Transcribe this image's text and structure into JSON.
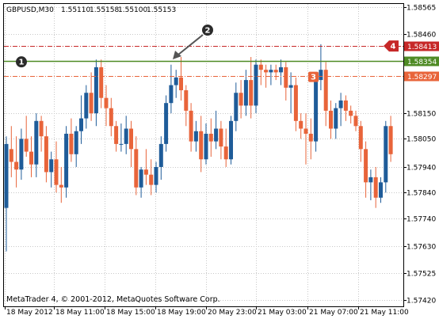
{
  "chart_data": {
    "type": "candlestick",
    "symbol_label": "GBPUSD,M30",
    "ohlc_readout": [
      "1.55110",
      "1.55158",
      "1.55100",
      "1.55153"
    ],
    "footer": "MetaTrader 4, © 2001-2012, MetaQuotes Software Corp.",
    "ylim": [
      1.5742,
      1.5857
    ],
    "y_ticks": [
      "1.58565",
      "1.58460",
      "1.58150",
      "1.58050",
      "1.57940",
      "1.57840",
      "1.57740",
      "1.57630",
      "1.57525",
      "1.57420"
    ],
    "x_ticks": [
      "18 May 2012",
      "18 May 11:00",
      "18 May 15:00",
      "18 May 19:00",
      "20 May 23:00",
      "21 May 03:00",
      "21 May 07:00",
      "21 May 11:00"
    ],
    "grid": true,
    "bull_color": "#1f5c99",
    "bear_color": "#e8643a",
    "levels": [
      {
        "price": 1.58413,
        "label": "1.58413",
        "style": "dash-dot",
        "color": "#c62828"
      },
      {
        "price": 1.58354,
        "label": "1.58354",
        "style": "solid",
        "color": "#4e8a24"
      },
      {
        "price": 1.58297,
        "label": "1.58297",
        "style": "dash-dot",
        "color": "#e8643a"
      }
    ],
    "markers": [
      "1",
      "2",
      "3",
      "4"
    ],
    "candles": [
      {
        "o": 1.5778,
        "h": 1.5806,
        "l": 1.5761,
        "c": 1.5803
      },
      {
        "o": 1.5801,
        "h": 1.581,
        "l": 1.579,
        "c": 1.5796
      },
      {
        "o": 1.5796,
        "h": 1.5806,
        "l": 1.5786,
        "c": 1.5793
      },
      {
        "o": 1.5793,
        "h": 1.5809,
        "l": 1.5789,
        "c": 1.5805
      },
      {
        "o": 1.5805,
        "h": 1.5814,
        "l": 1.5798,
        "c": 1.58
      },
      {
        "o": 1.58,
        "h": 1.5806,
        "l": 1.579,
        "c": 1.5795
      },
      {
        "o": 1.5795,
        "h": 1.5815,
        "l": 1.579,
        "c": 1.5812
      },
      {
        "o": 1.5812,
        "h": 1.5814,
        "l": 1.58,
        "c": 1.5806
      },
      {
        "o": 1.5806,
        "h": 1.581,
        "l": 1.5788,
        "c": 1.5792
      },
      {
        "o": 1.5792,
        "h": 1.58,
        "l": 1.5786,
        "c": 1.5797
      },
      {
        "o": 1.5797,
        "h": 1.5804,
        "l": 1.5784,
        "c": 1.5787
      },
      {
        "o": 1.5787,
        "h": 1.5794,
        "l": 1.578,
        "c": 1.5786
      },
      {
        "o": 1.5786,
        "h": 1.581,
        "l": 1.5782,
        "c": 1.5807
      },
      {
        "o": 1.5807,
        "h": 1.5813,
        "l": 1.5796,
        "c": 1.5799
      },
      {
        "o": 1.5799,
        "h": 1.581,
        "l": 1.5794,
        "c": 1.5808
      },
      {
        "o": 1.5808,
        "h": 1.5822,
        "l": 1.5803,
        "c": 1.5813
      },
      {
        "o": 1.5813,
        "h": 1.5826,
        "l": 1.5809,
        "c": 1.5823
      },
      {
        "o": 1.5823,
        "h": 1.5831,
        "l": 1.5812,
        "c": 1.5815
      },
      {
        "o": 1.5815,
        "h": 1.5836,
        "l": 1.581,
        "c": 1.5833
      },
      {
        "o": 1.5833,
        "h": 1.5836,
        "l": 1.5817,
        "c": 1.5821
      },
      {
        "o": 1.5821,
        "h": 1.5826,
        "l": 1.581,
        "c": 1.5817
      },
      {
        "o": 1.5817,
        "h": 1.5821,
        "l": 1.5806,
        "c": 1.581
      },
      {
        "o": 1.581,
        "h": 1.5812,
        "l": 1.58,
        "c": 1.5803
      },
      {
        "o": 1.5803,
        "h": 1.5811,
        "l": 1.58,
        "c": 1.5803
      },
      {
        "o": 1.5803,
        "h": 1.5814,
        "l": 1.5799,
        "c": 1.5809
      },
      {
        "o": 1.5809,
        "h": 1.5812,
        "l": 1.5794,
        "c": 1.5801
      },
      {
        "o": 1.5801,
        "h": 1.5806,
        "l": 1.5783,
        "c": 1.5786
      },
      {
        "o": 1.5786,
        "h": 1.5794,
        "l": 1.5782,
        "c": 1.5793
      },
      {
        "o": 1.5793,
        "h": 1.5801,
        "l": 1.5787,
        "c": 1.5791
      },
      {
        "o": 1.5791,
        "h": 1.5797,
        "l": 1.5783,
        "c": 1.5787
      },
      {
        "o": 1.5787,
        "h": 1.5796,
        "l": 1.5784,
        "c": 1.5794
      },
      {
        "o": 1.5794,
        "h": 1.5806,
        "l": 1.5789,
        "c": 1.5803
      },
      {
        "o": 1.5803,
        "h": 1.5822,
        "l": 1.58,
        "c": 1.5819
      },
      {
        "o": 1.5819,
        "h": 1.5834,
        "l": 1.5815,
        "c": 1.5826
      },
      {
        "o": 1.5826,
        "h": 1.5832,
        "l": 1.5821,
        "c": 1.5829
      },
      {
        "o": 1.5829,
        "h": 1.5837,
        "l": 1.582,
        "c": 1.5824
      },
      {
        "o": 1.5824,
        "h": 1.5826,
        "l": 1.581,
        "c": 1.5816
      },
      {
        "o": 1.5816,
        "h": 1.5819,
        "l": 1.58,
        "c": 1.5804
      },
      {
        "o": 1.5804,
        "h": 1.5812,
        "l": 1.58,
        "c": 1.5808
      },
      {
        "o": 1.5808,
        "h": 1.5814,
        "l": 1.5792,
        "c": 1.5797
      },
      {
        "o": 1.5797,
        "h": 1.5811,
        "l": 1.5795,
        "c": 1.5807
      },
      {
        "o": 1.5807,
        "h": 1.5813,
        "l": 1.5798,
        "c": 1.5804
      },
      {
        "o": 1.5804,
        "h": 1.5816,
        "l": 1.5801,
        "c": 1.5809
      },
      {
        "o": 1.5809,
        "h": 1.5812,
        "l": 1.5797,
        "c": 1.5802
      },
      {
        "o": 1.5802,
        "h": 1.5809,
        "l": 1.5794,
        "c": 1.5797
      },
      {
        "o": 1.5797,
        "h": 1.5814,
        "l": 1.5795,
        "c": 1.5812
      },
      {
        "o": 1.5812,
        "h": 1.5827,
        "l": 1.5808,
        "c": 1.5823
      },
      {
        "o": 1.5823,
        "h": 1.5828,
        "l": 1.5813,
        "c": 1.5818
      },
      {
        "o": 1.5818,
        "h": 1.5832,
        "l": 1.5814,
        "c": 1.5828
      },
      {
        "o": 1.5828,
        "h": 1.5837,
        "l": 1.5813,
        "c": 1.5818
      },
      {
        "o": 1.5818,
        "h": 1.5836,
        "l": 1.5815,
        "c": 1.5834
      },
      {
        "o": 1.5834,
        "h": 1.5836,
        "l": 1.5826,
        "c": 1.5832
      },
      {
        "o": 1.5832,
        "h": 1.5834,
        "l": 1.5825,
        "c": 1.5831
      },
      {
        "o": 1.5831,
        "h": 1.5834,
        "l": 1.5826,
        "c": 1.5832
      },
      {
        "o": 1.5832,
        "h": 1.5834,
        "l": 1.5828,
        "c": 1.5831
      },
      {
        "o": 1.5831,
        "h": 1.5836,
        "l": 1.5826,
        "c": 1.5833
      },
      {
        "o": 1.5833,
        "h": 1.5835,
        "l": 1.582,
        "c": 1.5825
      },
      {
        "o": 1.5825,
        "h": 1.5831,
        "l": 1.5815,
        "c": 1.5826
      },
      {
        "o": 1.5826,
        "h": 1.5829,
        "l": 1.5808,
        "c": 1.5812
      },
      {
        "o": 1.5812,
        "h": 1.5815,
        "l": 1.5805,
        "c": 1.5809
      },
      {
        "o": 1.5809,
        "h": 1.5815,
        "l": 1.5795,
        "c": 1.5807
      },
      {
        "o": 1.5807,
        "h": 1.5813,
        "l": 1.5797,
        "c": 1.5804
      },
      {
        "o": 1.5804,
        "h": 1.5831,
        "l": 1.58,
        "c": 1.5828
      },
      {
        "o": 1.5828,
        "h": 1.5842,
        "l": 1.5824,
        "c": 1.5832
      },
      {
        "o": 1.5832,
        "h": 1.5835,
        "l": 1.581,
        "c": 1.5816
      },
      {
        "o": 1.5816,
        "h": 1.582,
        "l": 1.5805,
        "c": 1.5809
      },
      {
        "o": 1.5809,
        "h": 1.5819,
        "l": 1.5805,
        "c": 1.5817
      },
      {
        "o": 1.5817,
        "h": 1.5823,
        "l": 1.581,
        "c": 1.582
      },
      {
        "o": 1.582,
        "h": 1.5822,
        "l": 1.5812,
        "c": 1.5816
      },
      {
        "o": 1.5816,
        "h": 1.5818,
        "l": 1.5811,
        "c": 1.5814
      },
      {
        "o": 1.5814,
        "h": 1.5816,
        "l": 1.5808,
        "c": 1.581
      },
      {
        "o": 1.581,
        "h": 1.5812,
        "l": 1.5796,
        "c": 1.5801
      },
      {
        "o": 1.5801,
        "h": 1.5804,
        "l": 1.5782,
        "c": 1.5788
      },
      {
        "o": 1.5788,
        "h": 1.5793,
        "l": 1.5781,
        "c": 1.579
      },
      {
        "o": 1.579,
        "h": 1.5794,
        "l": 1.5778,
        "c": 1.5782
      },
      {
        "o": 1.5782,
        "h": 1.579,
        "l": 1.578,
        "c": 1.5788
      },
      {
        "o": 1.5788,
        "h": 1.5812,
        "l": 1.5784,
        "c": 1.581
      },
      {
        "o": 1.581,
        "h": 1.5814,
        "l": 1.5796,
        "c": 1.5799
      }
    ]
  }
}
